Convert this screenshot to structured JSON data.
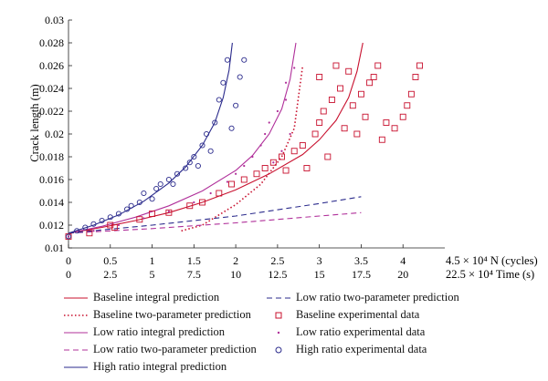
{
  "chart_data": {
    "type": "scatter",
    "ylabel": "Crack length (m)",
    "ylim": [
      0.01,
      0.03
    ],
    "yticks": [
      "0.01",
      "0.012",
      "0.014",
      "0.016",
      "0.018",
      "0.02",
      "0.022",
      "0.024",
      "0.026",
      "0.028",
      "0.03"
    ],
    "xlim": [
      0,
      4.5
    ],
    "xticks_cycles": [
      "0",
      "0.5",
      "1",
      "1.5",
      "2",
      "2.5",
      "3",
      "3.5",
      "4"
    ],
    "xticks_time": [
      "0",
      "2.5",
      "5",
      "7.5",
      "10",
      "12.5",
      "15",
      "17.5",
      "20"
    ],
    "x_axis_cycles_end_label": "4.5 × 10⁴ N (cycles)",
    "x_axis_time_end_label": "22.5 × 10⁴ Time (s)",
    "grid": false,
    "series": [
      {
        "name": "Baseline integral prediction",
        "kind": "line",
        "style": "solid",
        "color": "#c8102e",
        "x": [
          0,
          0.4,
          0.8,
          1.2,
          1.6,
          2.0,
          2.4,
          2.8,
          3.0,
          3.2,
          3.35,
          3.45,
          3.52
        ],
        "y": [
          0.0113,
          0.0118,
          0.0124,
          0.0131,
          0.014,
          0.0151,
          0.0165,
          0.0182,
          0.0195,
          0.0212,
          0.0232,
          0.0255,
          0.028
        ]
      },
      {
        "name": "Baseline two-parameter prediction",
        "kind": "line",
        "style": "dotted",
        "color": "#c8102e",
        "x": [
          1.35,
          1.6,
          2.0,
          2.3,
          2.55,
          2.7,
          2.8
        ],
        "y": [
          0.0115,
          0.012,
          0.0138,
          0.0156,
          0.018,
          0.0205,
          0.026
        ]
      },
      {
        "name": "Low ratio integral prediction",
        "kind": "line",
        "style": "solid",
        "color": "#b0309a",
        "x": [
          0,
          0.4,
          0.8,
          1.2,
          1.6,
          2.0,
          2.2,
          2.4,
          2.55,
          2.65,
          2.72
        ],
        "y": [
          0.0113,
          0.0119,
          0.0127,
          0.0137,
          0.015,
          0.0168,
          0.0181,
          0.02,
          0.0222,
          0.0248,
          0.028
        ]
      },
      {
        "name": "Low ratio two-parameter prediction",
        "kind": "line",
        "style": "dashed",
        "color": "#b0309a",
        "x": [
          0,
          1,
          2,
          3,
          3.5
        ],
        "y": [
          0.0113,
          0.0117,
          0.0122,
          0.0128,
          0.0131
        ]
      },
      {
        "name": "High ratio integral prediction",
        "kind": "line",
        "style": "solid",
        "color": "#2b2b8c",
        "x": [
          0,
          0.3,
          0.6,
          0.9,
          1.2,
          1.4,
          1.6,
          1.75,
          1.85,
          1.92,
          1.96
        ],
        "y": [
          0.0113,
          0.012,
          0.0129,
          0.0141,
          0.0157,
          0.0171,
          0.019,
          0.021,
          0.0232,
          0.0256,
          0.028
        ]
      },
      {
        "name": "Low ratio two-parameter prediction",
        "kind": "line",
        "style": "dashed",
        "color": "#2b2b8c",
        "x": [
          0,
          1,
          2,
          3,
          3.5
        ],
        "y": [
          0.0113,
          0.012,
          0.0128,
          0.0139,
          0.0145
        ]
      },
      {
        "name": "Baseline experimental data",
        "kind": "points",
        "marker": "square",
        "color": "#c8102e",
        "x": [
          0,
          0.25,
          0.5,
          0.55,
          0.85,
          1.0,
          1.2,
          1.45,
          1.6,
          1.8,
          1.95,
          2.1,
          2.25,
          2.35,
          2.45,
          2.55,
          2.6,
          2.7,
          2.8,
          2.85,
          2.95,
          3.0,
          3.0,
          3.05,
          3.1,
          3.15,
          3.2,
          3.25,
          3.3,
          3.35,
          3.4,
          3.45,
          3.5,
          3.55,
          3.6,
          3.65,
          3.7,
          3.75,
          3.8,
          3.9,
          4.0,
          4.05,
          4.1,
          4.15,
          4.2
        ],
        "y": [
          0.011,
          0.0113,
          0.012,
          0.0118,
          0.0125,
          0.013,
          0.0131,
          0.0137,
          0.014,
          0.0148,
          0.0156,
          0.016,
          0.0165,
          0.017,
          0.0175,
          0.018,
          0.0168,
          0.0185,
          0.019,
          0.017,
          0.02,
          0.021,
          0.025,
          0.022,
          0.018,
          0.023,
          0.026,
          0.024,
          0.0205,
          0.0255,
          0.0225,
          0.02,
          0.0235,
          0.0215,
          0.0245,
          0.025,
          0.026,
          0.0195,
          0.021,
          0.0205,
          0.0215,
          0.0225,
          0.0235,
          0.025,
          0.026
        ]
      },
      {
        "name": "Low ratio experimental data",
        "kind": "points",
        "marker": "dot",
        "color": "#b0309a",
        "x": [
          0,
          0.3,
          0.6,
          0.9,
          1.2,
          1.5,
          1.7,
          1.9,
          2.0,
          2.1,
          2.2,
          2.3,
          2.35,
          2.4,
          2.45,
          2.5,
          2.55,
          2.6,
          2.6,
          2.65,
          2.7
        ],
        "y": [
          0.011,
          0.0115,
          0.012,
          0.0126,
          0.0132,
          0.014,
          0.0148,
          0.0158,
          0.0165,
          0.0172,
          0.018,
          0.019,
          0.02,
          0.021,
          0.0175,
          0.022,
          0.0185,
          0.023,
          0.0245,
          0.02,
          0.0258
        ]
      },
      {
        "name": "High ratio experimental data",
        "kind": "points",
        "marker": "circle",
        "color": "#2b2b8c",
        "x": [
          0,
          0.1,
          0.2,
          0.3,
          0.4,
          0.5,
          0.6,
          0.7,
          0.75,
          0.85,
          0.9,
          1.0,
          1.05,
          1.1,
          1.2,
          1.25,
          1.3,
          1.4,
          1.45,
          1.5,
          1.55,
          1.6,
          1.65,
          1.7,
          1.75,
          1.8,
          1.85,
          1.9,
          1.95,
          2.0,
          2.05,
          2.1
        ],
        "y": [
          0.011,
          0.0115,
          0.0118,
          0.0121,
          0.0124,
          0.0127,
          0.013,
          0.0134,
          0.0137,
          0.014,
          0.0148,
          0.0143,
          0.0152,
          0.0156,
          0.016,
          0.0156,
          0.0165,
          0.017,
          0.0175,
          0.018,
          0.0172,
          0.019,
          0.02,
          0.0185,
          0.021,
          0.023,
          0.0245,
          0.0265,
          0.0205,
          0.0225,
          0.025,
          0.0265
        ]
      }
    ]
  },
  "legend": [
    {
      "label": "Baseline integral prediction",
      "style": "solid",
      "color": "#c8102e",
      "col": 0,
      "row": 0
    },
    {
      "label": "Baseline two-parameter prediction",
      "style": "dotted",
      "color": "#c8102e",
      "col": 0,
      "row": 1
    },
    {
      "label": "Low ratio integral prediction",
      "style": "solid",
      "color": "#b0309a",
      "col": 0,
      "row": 2
    },
    {
      "label": "Low ratio two-parameter prediction",
      "style": "dashed",
      "color": "#b0309a",
      "col": 0,
      "row": 3
    },
    {
      "label": "High ratio integral prediction",
      "style": "solid",
      "color": "#2b2b8c",
      "col": 0,
      "row": 4
    },
    {
      "label": "Low ratio two-parameter prediction",
      "style": "dashed",
      "color": "#2b2b8c",
      "col": 1,
      "row": 0
    },
    {
      "label": "Baseline experimental data",
      "style": "square",
      "color": "#c8102e",
      "col": 1,
      "row": 1
    },
    {
      "label": "Low ratio experimental data",
      "style": "dot",
      "color": "#b0309a",
      "col": 1,
      "row": 2
    },
    {
      "label": "High ratio experimental data",
      "style": "circle",
      "color": "#2b2b8c",
      "col": 1,
      "row": 3
    }
  ]
}
